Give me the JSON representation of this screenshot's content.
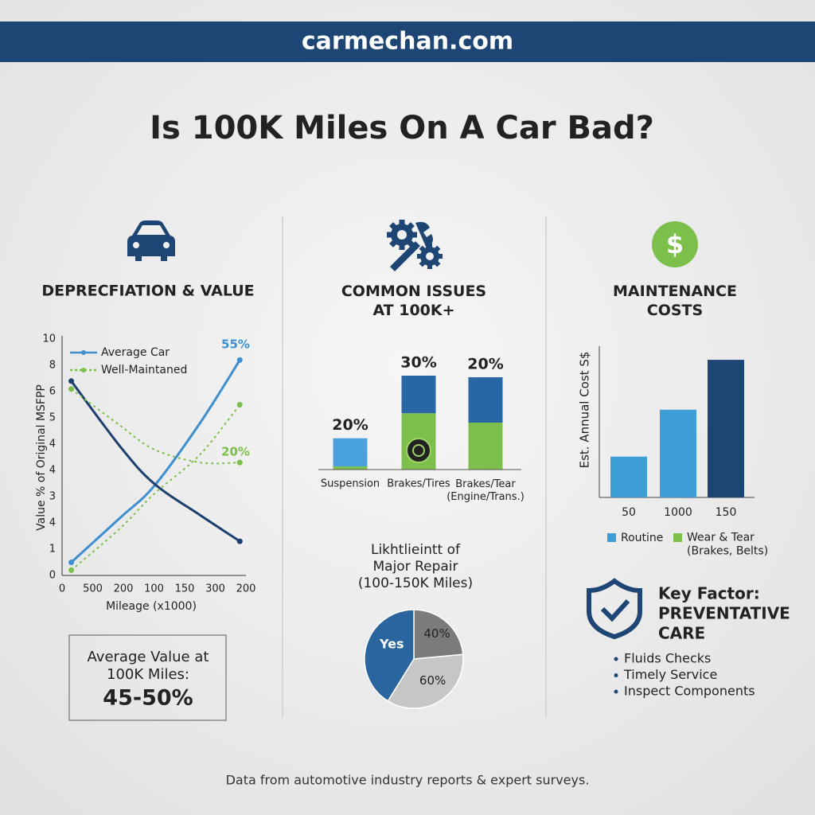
{
  "header": {
    "site": "carmechan.com"
  },
  "title": "Is 100K Miles On A Car Bad?",
  "chart_data": [
    {
      "type": "line",
      "title": "DEPRECFIATION & VALUE",
      "x": [
        0.3,
        1.9,
        3.0,
        4.5,
        5.8
      ],
      "series": [
        {
          "name": "Average Car",
          "color": "#3d8fd0",
          "dashed": false,
          "values": [
            0.5,
            2.2,
            3.4,
            5.8,
            8.2
          ]
        },
        {
          "color": "#1d3f70",
          "dashed": false,
          "values": [
            7.4,
            4.9,
            3.5,
            2.3,
            1.3
          ]
        },
        {
          "name": "Well-Maintaned",
          "color": "#7cc04b",
          "dashed": true,
          "values": [
            0.2,
            1.8,
            3.1,
            4.6,
            6.5
          ]
        },
        {
          "color": "#7cc04b",
          "dashed": true,
          "values": [
            7.1,
            5.7,
            4.8,
            4.3,
            4.3
          ]
        }
      ],
      "xlim": [
        0,
        6
      ],
      "xticks": [
        0,
        {
          "value": 1,
          "label": "500"
        },
        {
          "value": 2,
          "label": "200"
        },
        {
          "value": 3,
          "label": "100"
        },
        {
          "value": 4,
          "label": "150"
        },
        {
          "value": 5,
          "label": "300"
        },
        {
          "value": 6,
          "label": "200"
        }
      ],
      "ylim": [
        0,
        9
      ],
      "yticks": [
        0,
        1,
        {
          "value": 2,
          "label": "4"
        },
        3,
        4,
        {
          "value": 5,
          "label": "4"
        },
        {
          "value": 6,
          "label": "5"
        },
        {
          "value": 7,
          "label": "6"
        },
        {
          "value": 8,
          "label": "8"
        },
        {
          "value": 9,
          "label": "10"
        }
      ],
      "ylabel": "Value % of Original MSFPP",
      "xlabel": "Mileage (x1000)",
      "annotations": [
        "55%",
        "20%"
      ]
    },
    {
      "type": "stacked-bar",
      "title": "COMMON ISSUES\nAT 100K+",
      "categories": [
        "Suspension",
        "Brakes/Tires",
        "Brakes/Tear\n(Engine/Trans.)"
      ],
      "series": [
        {
          "colors": [
            "#7cc04b",
            "#7cc04b",
            "#7cc04b"
          ],
          "values": [
            1,
            18,
            15
          ]
        },
        {
          "colors": [
            "#4aa3dd",
            "#2866a6",
            "#2866a6"
          ],
          "values": [
            9,
            12,
            14.5
          ]
        }
      ],
      "ylim": [
        0,
        30
      ],
      "annotations": [
        "20%",
        "30%",
        "20%"
      ]
    },
    {
      "type": "pie",
      "title": "Likhtlieintt of\nMajor Repair\n(100-150K Miles)",
      "categories": [
        null,
        null,
        "Yes"
      ],
      "values": [
        40,
        60,
        70
      ],
      "value_labels": [
        "40%",
        "60%",
        null
      ],
      "colors": [
        "#7b7b7b",
        "#c6c6c6",
        "#2a65a0"
      ]
    },
    {
      "type": "bar",
      "title": "MAINTENANCE\nCOSTS",
      "categories": [
        "50",
        "1000",
        "150"
      ],
      "values": [
        27,
        58,
        91
      ],
      "colors": [
        "#3d9fd6",
        "#3d9fd6",
        "#1d4675"
      ],
      "ylim": [
        0,
        100
      ],
      "ylabel": "Est. Annual Cost S$",
      "legend": [
        {
          "name": "Routine",
          "color": "#3d9fd6"
        },
        {
          "name": "Wear & Tear\n(Brakes, Belts)",
          "color": "#7cc04b"
        }
      ]
    }
  ],
  "value_box": {
    "label": "Average Value at\n100K Miles:",
    "value": "45-50%"
  },
  "key_factor": {
    "label": "Key Factor:",
    "heading": "PREVENTATIVE\nCARE",
    "items": [
      "Fluids Checks",
      "Timely Service",
      "Inspect Components"
    ]
  },
  "footer": "Data from automotive industry reports & expert surveys."
}
